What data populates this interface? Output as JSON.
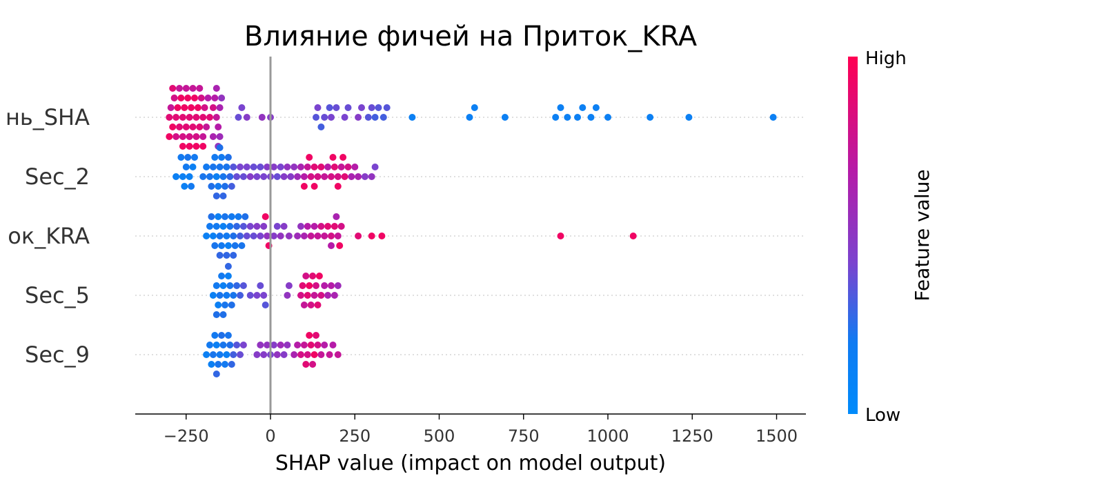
{
  "chart_data": {
    "type": "scatter",
    "subtype": "shap-beeswarm",
    "title": "Влияние фичей на Приток_KRA",
    "xlabel": "SHAP value (impact on model output)",
    "x_ticks": [
      -250,
      0,
      250,
      500,
      750,
      1000,
      1250,
      1500
    ],
    "x_tick_labels": [
      "−250",
      "0",
      "250",
      "500",
      "750",
      "1000",
      "1250",
      "1500"
    ],
    "xlim": [
      -400,
      1590
    ],
    "zero_line": true,
    "grid": false,
    "colorbar": {
      "title": "Feature value",
      "high_label": "High",
      "low_label": "Low",
      "colors": [
        "#008bfb",
        "#1f6fe8",
        "#7a44cf",
        "#b51ba8",
        "#ff0052"
      ]
    },
    "features": [
      {
        "label": "нь_SHA",
        "points": [
          [
            -300,
            0.9
          ],
          [
            -295,
            0.8
          ],
          [
            -290,
            0.95
          ],
          [
            -285,
            0.85
          ],
          [
            -280,
            0.9
          ],
          [
            -275,
            0.95
          ],
          [
            -270,
            0.9
          ],
          [
            -265,
            0.95
          ],
          [
            -260,
            0.9
          ],
          [
            -255,
            0.95
          ],
          [
            -250,
            0.9
          ],
          [
            -245,
            0.95
          ],
          [
            -240,
            0.9
          ],
          [
            -235,
            0.95
          ],
          [
            -230,
            0.9
          ],
          [
            -225,
            0.95
          ],
          [
            -220,
            0.9
          ],
          [
            -215,
            0.95
          ],
          [
            -210,
            0.9
          ],
          [
            -205,
            0.85
          ],
          [
            -200,
            0.9
          ],
          [
            -195,
            0.85
          ],
          [
            -190,
            0.8
          ],
          [
            -185,
            0.75
          ],
          [
            -280,
            0.85
          ],
          [
            -260,
            0.85
          ],
          [
            -240,
            0.85
          ],
          [
            -220,
            0.85
          ],
          [
            -200,
            0.8
          ],
          [
            -250,
            0.8
          ],
          [
            -230,
            0.8
          ],
          [
            -270,
            0.8
          ],
          [
            -210,
            0.8
          ],
          [
            -290,
            0.9
          ],
          [
            -300,
            0.95
          ],
          [
            -240,
            0.95
          ],
          [
            -220,
            0.95
          ],
          [
            -260,
            0.95
          ],
          [
            -200,
            0.95
          ],
          [
            -180,
            0.9
          ],
          [
            -170,
            0.85
          ],
          [
            -160,
            0.8
          ],
          [
            -150,
            0.7
          ],
          [
            -155,
            0.75
          ],
          [
            -165,
            0.75
          ],
          [
            -150,
            0.65
          ],
          [
            -145,
            0.6
          ],
          [
            -160,
            0.7
          ],
          [
            -170,
            0.7
          ],
          [
            -155,
            0.6
          ],
          [
            -95,
            0.45
          ],
          [
            -85,
            0.5
          ],
          [
            -70,
            0.55
          ],
          [
            -25,
            0.6
          ],
          [
            0,
            0.55
          ],
          [
            135,
            0.4
          ],
          [
            140,
            0.5
          ],
          [
            150,
            0.35
          ],
          [
            160,
            0.45
          ],
          [
            175,
            0.4
          ],
          [
            180,
            0.5
          ],
          [
            195,
            0.45
          ],
          [
            220,
            0.5
          ],
          [
            230,
            0.45
          ],
          [
            260,
            0.55
          ],
          [
            270,
            0.5
          ],
          [
            290,
            0.4
          ],
          [
            300,
            0.45
          ],
          [
            310,
            0.35
          ],
          [
            320,
            0.4
          ],
          [
            335,
            0.35
          ],
          [
            345,
            0.4
          ],
          [
            420,
            0.1
          ],
          [
            590,
            0.1
          ],
          [
            605,
            0.1
          ],
          [
            695,
            0.1
          ],
          [
            845,
            0.1
          ],
          [
            860,
            0.1
          ],
          [
            880,
            0.1
          ],
          [
            910,
            0.1
          ],
          [
            925,
            0.1
          ],
          [
            950,
            0.1
          ],
          [
            965,
            0.1
          ],
          [
            1000,
            0.1
          ],
          [
            1125,
            0.1
          ],
          [
            1240,
            0.1
          ],
          [
            1490,
            0.1
          ]
        ]
      },
      {
        "label": "Sec_2",
        "points": [
          [
            -280,
            0.1
          ],
          [
            -260,
            0.1
          ],
          [
            -250,
            0.15
          ],
          [
            -240,
            0.1
          ],
          [
            -235,
            0.15
          ],
          [
            -230,
            0.1
          ],
          [
            -225,
            0.15
          ],
          [
            -245,
            0.2
          ],
          [
            -255,
            0.1
          ],
          [
            -265,
            0.15
          ],
          [
            -200,
            0.2
          ],
          [
            -190,
            0.15
          ],
          [
            -180,
            0.2
          ],
          [
            -175,
            0.25
          ],
          [
            -170,
            0.2
          ],
          [
            -165,
            0.15
          ],
          [
            -160,
            0.1
          ],
          [
            -155,
            0.15
          ],
          [
            -150,
            0.2
          ],
          [
            -145,
            0.15
          ],
          [
            -140,
            0.2
          ],
          [
            -135,
            0.25
          ],
          [
            -130,
            0.2
          ],
          [
            -125,
            0.25
          ],
          [
            -160,
            0.3
          ],
          [
            -150,
            0.25
          ],
          [
            -140,
            0.3
          ],
          [
            -120,
            0.3
          ],
          [
            -115,
            0.35
          ],
          [
            -110,
            0.4
          ],
          [
            -100,
            0.45
          ],
          [
            -90,
            0.5
          ],
          [
            -80,
            0.45
          ],
          [
            -70,
            0.5
          ],
          [
            -60,
            0.55
          ],
          [
            -50,
            0.45
          ],
          [
            -40,
            0.5
          ],
          [
            -30,
            0.45
          ],
          [
            -20,
            0.5
          ],
          [
            -10,
            0.55
          ],
          [
            0,
            0.5
          ],
          [
            10,
            0.55
          ],
          [
            20,
            0.45
          ],
          [
            30,
            0.5
          ],
          [
            40,
            0.55
          ],
          [
            50,
            0.6
          ],
          [
            60,
            0.55
          ],
          [
            70,
            0.6
          ],
          [
            80,
            0.65
          ],
          [
            90,
            0.7
          ],
          [
            100,
            0.75
          ],
          [
            110,
            0.8
          ],
          [
            120,
            0.85
          ],
          [
            130,
            0.9
          ],
          [
            140,
            0.85
          ],
          [
            150,
            0.9
          ],
          [
            160,
            0.8
          ],
          [
            170,
            0.75
          ],
          [
            180,
            0.85
          ],
          [
            190,
            0.9
          ],
          [
            200,
            0.85
          ],
          [
            210,
            0.8
          ],
          [
            220,
            0.9
          ],
          [
            230,
            0.85
          ],
          [
            240,
            0.7
          ],
          [
            250,
            0.75
          ],
          [
            260,
            0.7
          ],
          [
            280,
            0.55
          ],
          [
            300,
            0.6
          ],
          [
            310,
            0.5
          ],
          [
            100,
            0.95
          ],
          [
            115,
            0.95
          ],
          [
            130,
            0.95
          ],
          [
            200,
            0.95
          ],
          [
            215,
            0.95
          ],
          [
            185,
            0.95
          ]
        ]
      },
      {
        "label": "ок_KRA",
        "points": [
          [
            -190,
            0.1
          ],
          [
            -180,
            0.15
          ],
          [
            -170,
            0.1
          ],
          [
            -165,
            0.2
          ],
          [
            -160,
            0.15
          ],
          [
            -155,
            0.1
          ],
          [
            -150,
            0.2
          ],
          [
            -145,
            0.15
          ],
          [
            -140,
            0.1
          ],
          [
            -135,
            0.2
          ],
          [
            -130,
            0.15
          ],
          [
            -125,
            0.1
          ],
          [
            -120,
            0.2
          ],
          [
            -115,
            0.15
          ],
          [
            -110,
            0.25
          ],
          [
            -105,
            0.2
          ],
          [
            -175,
            0.25
          ],
          [
            -150,
            0.3
          ],
          [
            -130,
            0.3
          ],
          [
            -110,
            0.3
          ],
          [
            -100,
            0.3
          ],
          [
            -90,
            0.35
          ],
          [
            -80,
            0.4
          ],
          [
            -70,
            0.45
          ],
          [
            -60,
            0.5
          ],
          [
            -50,
            0.45
          ],
          [
            -40,
            0.55
          ],
          [
            -30,
            0.5
          ],
          [
            -20,
            0.55
          ],
          [
            -10,
            0.6
          ],
          [
            10,
            0.55
          ],
          [
            20,
            0.5
          ],
          [
            30,
            0.6
          ],
          [
            40,
            0.55
          ],
          [
            55,
            0.6
          ],
          [
            -5,
            0.95
          ],
          [
            -15,
            0.95
          ],
          [
            -95,
            0.15
          ],
          [
            -85,
            0.2
          ],
          [
            -75,
            0.25
          ],
          [
            80,
            0.65
          ],
          [
            90,
            0.6
          ],
          [
            100,
            0.7
          ],
          [
            110,
            0.75
          ],
          [
            120,
            0.8
          ],
          [
            130,
            0.75
          ],
          [
            140,
            0.8
          ],
          [
            150,
            0.85
          ],
          [
            160,
            0.8
          ],
          [
            170,
            0.9
          ],
          [
            180,
            0.85
          ],
          [
            190,
            0.9
          ],
          [
            200,
            0.8
          ],
          [
            210,
            0.85
          ],
          [
            180,
            0.75
          ],
          [
            195,
            0.7
          ],
          [
            205,
            0.95
          ],
          [
            260,
            0.9
          ],
          [
            300,
            0.95
          ],
          [
            330,
            0.95
          ],
          [
            860,
            0.95
          ],
          [
            1075,
            0.95
          ]
        ]
      },
      {
        "label": "Sec_5",
        "points": [
          [
            -170,
            0.1
          ],
          [
            -160,
            0.15
          ],
          [
            -155,
            0.1
          ],
          [
            -150,
            0.2
          ],
          [
            -145,
            0.15
          ],
          [
            -140,
            0.1
          ],
          [
            -135,
            0.2
          ],
          [
            -130,
            0.15
          ],
          [
            -125,
            0.1
          ],
          [
            -120,
            0.2
          ],
          [
            -115,
            0.25
          ],
          [
            -110,
            0.2
          ],
          [
            -160,
            0.25
          ],
          [
            -140,
            0.25
          ],
          [
            -125,
            0.3
          ],
          [
            -100,
            0.3
          ],
          [
            -90,
            0.35
          ],
          [
            -80,
            0.4
          ],
          [
            -60,
            0.45
          ],
          [
            -40,
            0.5
          ],
          [
            -30,
            0.45
          ],
          [
            -20,
            0.5
          ],
          [
            -15,
            0.4
          ],
          [
            50,
            0.6
          ],
          [
            55,
            0.55
          ],
          [
            90,
            0.85
          ],
          [
            95,
            0.9
          ],
          [
            100,
            0.8
          ],
          [
            105,
            0.85
          ],
          [
            110,
            0.9
          ],
          [
            115,
            0.95
          ],
          [
            120,
            0.85
          ],
          [
            125,
            0.9
          ],
          [
            130,
            0.8
          ],
          [
            135,
            0.85
          ],
          [
            140,
            0.9
          ],
          [
            145,
            0.95
          ],
          [
            150,
            0.85
          ],
          [
            160,
            0.75
          ],
          [
            170,
            0.7
          ],
          [
            180,
            0.75
          ],
          [
            190,
            0.7
          ],
          [
            200,
            0.65
          ]
        ]
      },
      {
        "label": "Sec_9",
        "points": [
          [
            -190,
            0.1
          ],
          [
            -180,
            0.15
          ],
          [
            -175,
            0.1
          ],
          [
            -170,
            0.2
          ],
          [
            -165,
            0.15
          ],
          [
            -160,
            0.1
          ],
          [
            -155,
            0.2
          ],
          [
            -150,
            0.15
          ],
          [
            -145,
            0.25
          ],
          [
            -140,
            0.2
          ],
          [
            -135,
            0.15
          ],
          [
            -130,
            0.1
          ],
          [
            -125,
            0.2
          ],
          [
            -120,
            0.25
          ],
          [
            -115,
            0.3
          ],
          [
            -110,
            0.35
          ],
          [
            -100,
            0.4
          ],
          [
            -90,
            0.45
          ],
          [
            -80,
            0.5
          ],
          [
            -160,
            0.3
          ],
          [
            -40,
            0.55
          ],
          [
            -30,
            0.6
          ],
          [
            -20,
            0.55
          ],
          [
            -10,
            0.6
          ],
          [
            0,
            0.5
          ],
          [
            10,
            0.55
          ],
          [
            20,
            0.6
          ],
          [
            30,
            0.65
          ],
          [
            40,
            0.55
          ],
          [
            50,
            0.6
          ],
          [
            70,
            0.7
          ],
          [
            80,
            0.75
          ],
          [
            90,
            0.85
          ],
          [
            100,
            0.8
          ],
          [
            105,
            0.9
          ],
          [
            110,
            0.85
          ],
          [
            115,
            0.95
          ],
          [
            120,
            0.9
          ],
          [
            125,
            0.85
          ],
          [
            130,
            0.95
          ],
          [
            135,
            0.9
          ],
          [
            140,
            0.85
          ],
          [
            150,
            0.8
          ],
          [
            160,
            0.75
          ],
          [
            175,
            0.8
          ],
          [
            185,
            0.75
          ],
          [
            200,
            0.8
          ]
        ]
      }
    ]
  }
}
